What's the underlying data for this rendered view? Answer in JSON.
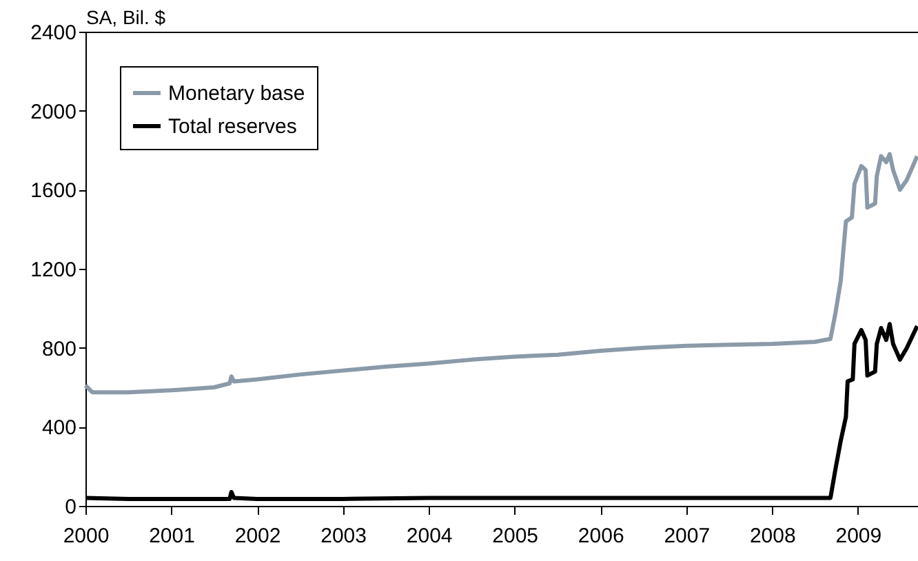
{
  "chart_data": {
    "type": "line",
    "ylabel": "SA, Bil. $",
    "xlim": [
      2000,
      2009.7
    ],
    "xticks": [
      2000,
      2001,
      2002,
      2003,
      2004,
      2005,
      2006,
      2007,
      2008,
      2009
    ],
    "ylim": [
      0,
      2400
    ],
    "yticks": [
      0,
      400,
      800,
      1200,
      1600,
      2000,
      2400
    ],
    "legend": "top left",
    "grid": false,
    "line_style": "solid",
    "marker": "none",
    "series": [
      {
        "name": "Monetary base",
        "color": "#8a9aa8",
        "x": [
          2000,
          2000.08,
          2000.5,
          2001,
          2001.5,
          2001.68,
          2001.7,
          2001.73,
          2002,
          2002.5,
          2003,
          2003.5,
          2004,
          2004.5,
          2005,
          2005.5,
          2006,
          2006.5,
          2007,
          2007.5,
          2008,
          2008.5,
          2008.68,
          2008.74,
          2008.8,
          2008.86,
          2008.93,
          2008.96,
          2009.04,
          2009.09,
          2009.11,
          2009.2,
          2009.22,
          2009.27,
          2009.33,
          2009.37,
          2009.41,
          2009.49,
          2009.57,
          2009.69
        ],
        "values": [
          610,
          575,
          575,
          585,
          600,
          620,
          655,
          630,
          640,
          665,
          685,
          705,
          720,
          740,
          755,
          765,
          785,
          800,
          810,
          815,
          820,
          830,
          845,
          980,
          1140,
          1440,
          1460,
          1630,
          1720,
          1700,
          1510,
          1530,
          1670,
          1770,
          1740,
          1780,
          1700,
          1600,
          1650,
          1770
        ]
      },
      {
        "name": "Total reserves",
        "color": "#000000",
        "x": [
          2000,
          2000.5,
          2001,
          2001.5,
          2001.68,
          2001.7,
          2001.73,
          2002,
          2003,
          2004,
          2005,
          2006,
          2007,
          2008,
          2008.68,
          2008.74,
          2008.8,
          2008.86,
          2008.88,
          2008.94,
          2008.96,
          2009.04,
          2009.09,
          2009.11,
          2009.2,
          2009.22,
          2009.27,
          2009.33,
          2009.37,
          2009.41,
          2009.49,
          2009.57,
          2009.69
        ],
        "values": [
          40,
          35,
          35,
          35,
          35,
          70,
          40,
          35,
          35,
          40,
          40,
          40,
          40,
          40,
          40,
          190,
          330,
          450,
          630,
          640,
          820,
          890,
          840,
          660,
          680,
          820,
          900,
          840,
          920,
          820,
          740,
          800,
          910
        ]
      }
    ]
  }
}
